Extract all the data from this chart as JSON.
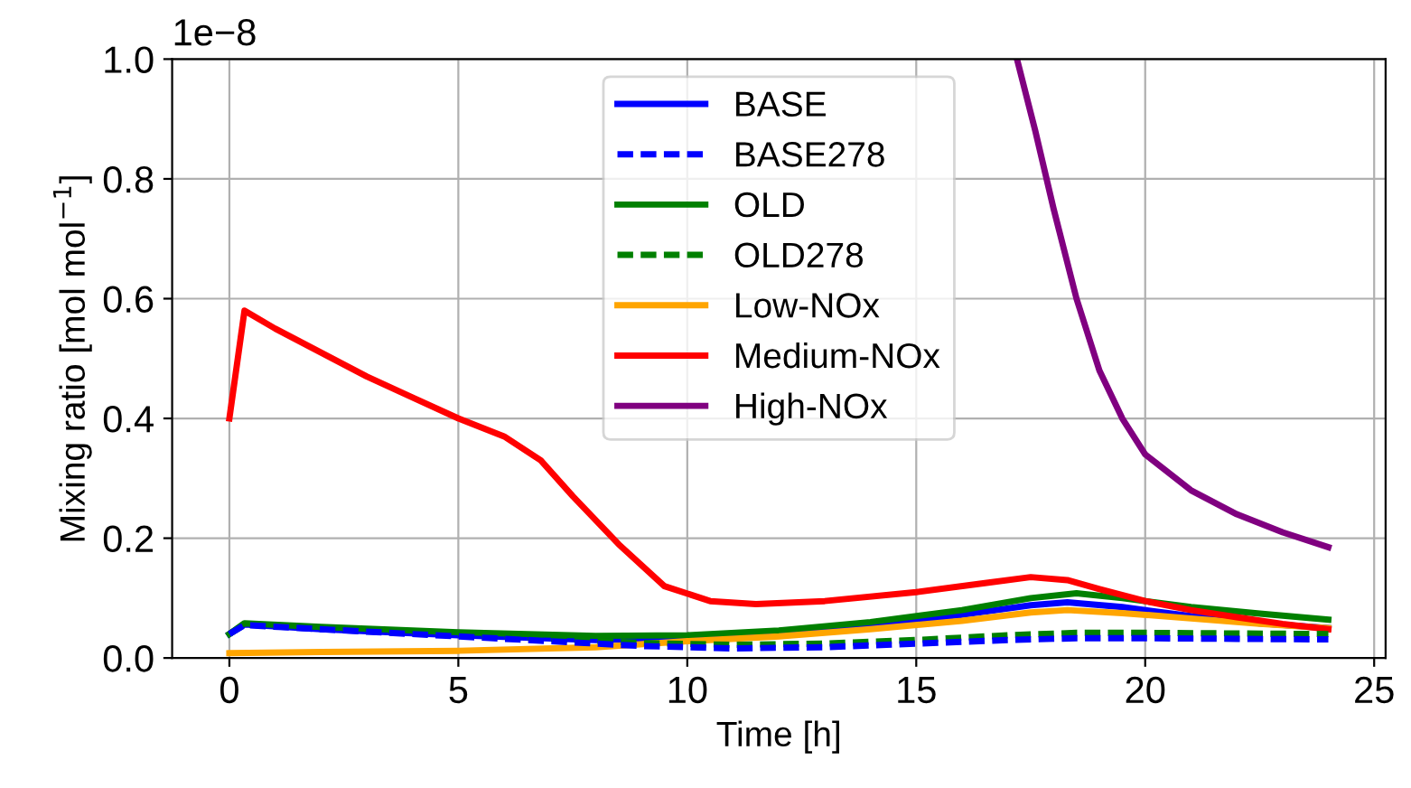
{
  "chart_data": {
    "type": "line",
    "xlabel": "Time [h]",
    "ylabel": "Mixing ratio [mol mol$^{−1}$]",
    "annotations": [
      "1e−8"
    ],
    "xlim": [
      -1.25,
      25.25
    ],
    "xticks": [
      0,
      5,
      10,
      15,
      20,
      25
    ],
    "ylim": [
      0,
      1.0
    ],
    "yticks": [
      {
        "value": 0,
        "label": "0.0"
      },
      {
        "value": 0.2,
        "label": "0.2"
      },
      {
        "value": 0.4,
        "label": "0.4"
      },
      {
        "value": 0.6,
        "label": "0.6"
      },
      {
        "value": 0.8,
        "label": "0.8"
      },
      {
        "value": 1.0,
        "label": "1.0"
      }
    ],
    "grid": true,
    "legend": "top",
    "marker": "none",
    "series": [
      {
        "name": "BASE",
        "color": "#0000ff",
        "line_style": "solid",
        "x": [
          0,
          0.33,
          2,
          5,
          8,
          10,
          12,
          14,
          16,
          17.5,
          18.3,
          19.5,
          21,
          22.5,
          24
        ],
        "values": [
          0.04,
          0.056,
          0.048,
          0.038,
          0.03,
          0.033,
          0.04,
          0.055,
          0.072,
          0.088,
          0.093,
          0.085,
          0.07,
          0.058,
          0.05
        ]
      },
      {
        "name": "BASE278",
        "color": "#0000ff",
        "line_style": "dashed",
        "x": [
          0,
          0.33,
          2,
          5,
          7,
          9,
          11,
          13,
          15,
          17,
          18.5,
          20,
          22,
          24
        ],
        "values": [
          0.04,
          0.055,
          0.048,
          0.036,
          0.028,
          0.02,
          0.016,
          0.018,
          0.024,
          0.03,
          0.033,
          0.033,
          0.032,
          0.031
        ]
      },
      {
        "name": "OLD",
        "color": "#008000",
        "line_style": "solid",
        "x": [
          0,
          0.33,
          2,
          5,
          8,
          10,
          12,
          14,
          16,
          17.5,
          18.5,
          19.5,
          21,
          22.5,
          24
        ],
        "values": [
          0.04,
          0.058,
          0.052,
          0.043,
          0.037,
          0.038,
          0.046,
          0.06,
          0.08,
          0.1,
          0.108,
          0.1,
          0.085,
          0.074,
          0.064
        ]
      },
      {
        "name": "OLD278",
        "color": "#008000",
        "line_style": "dashed",
        "x": [
          0,
          0.33,
          2,
          5,
          7,
          9,
          11,
          13,
          15,
          17,
          18.5,
          20,
          22,
          24
        ],
        "values": [
          0.04,
          0.056,
          0.05,
          0.04,
          0.032,
          0.025,
          0.022,
          0.024,
          0.03,
          0.038,
          0.042,
          0.042,
          0.041,
          0.04
        ]
      },
      {
        "name": "Low-NOx",
        "color": "#ffa500",
        "line_style": "solid",
        "x": [
          0,
          2,
          5,
          8,
          10,
          12,
          14,
          16,
          17.5,
          18.3,
          19.5,
          21,
          22.5,
          24
        ],
        "values": [
          0.008,
          0.01,
          0.012,
          0.018,
          0.028,
          0.036,
          0.048,
          0.062,
          0.076,
          0.08,
          0.075,
          0.066,
          0.057,
          0.05
        ]
      },
      {
        "name": "Medium-NOx",
        "color": "#ff0000",
        "line_style": "solid",
        "x": [
          0,
          0.33,
          1,
          2,
          3,
          4,
          5,
          6,
          6.8,
          7.5,
          8.5,
          9.5,
          10.5,
          11.5,
          13,
          15,
          16.5,
          17.5,
          18.3,
          19,
          20,
          21,
          22,
          23,
          24
        ],
        "values": [
          0.4,
          0.58,
          0.55,
          0.51,
          0.47,
          0.435,
          0.4,
          0.37,
          0.33,
          0.27,
          0.19,
          0.12,
          0.095,
          0.09,
          0.095,
          0.11,
          0.125,
          0.135,
          0.13,
          0.115,
          0.095,
          0.08,
          0.068,
          0.057,
          0.048
        ]
      },
      {
        "name": "High-NOx",
        "color": "#800080",
        "line_style": "solid",
        "x": [
          17.2,
          17.6,
          18,
          18.5,
          19,
          19.5,
          20,
          21,
          22,
          23,
          24
        ],
        "values": [
          1.0,
          0.88,
          0.75,
          0.6,
          0.48,
          0.4,
          0.34,
          0.28,
          0.24,
          0.21,
          0.185
        ]
      }
    ]
  }
}
